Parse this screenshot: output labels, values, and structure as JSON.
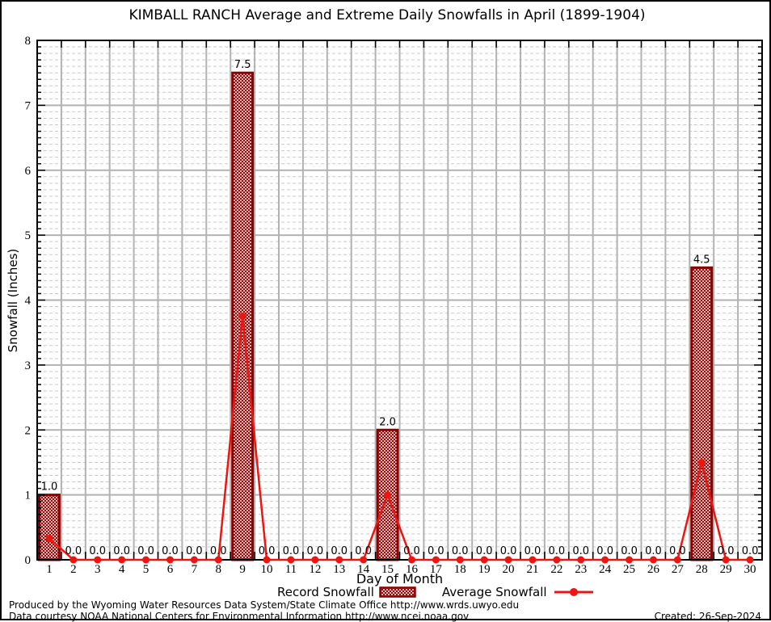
{
  "chart_data": {
    "type": "bar",
    "title": "KIMBALL RANCH Average and Extreme Daily Snowfalls in April (1899-1904)",
    "xlabel": "Day of Month",
    "ylabel": "Snowfall (Inches)",
    "ylim": [
      0,
      8
    ],
    "y_major_step": 1,
    "y_minor_step": 0.1,
    "grid": {
      "horizontal_major": "solid",
      "horizontal_minor": "dashed",
      "vertical": "solid-per-day"
    },
    "legend_position": "bottom-center",
    "categories": [
      1,
      2,
      3,
      4,
      5,
      6,
      7,
      8,
      9,
      10,
      11,
      12,
      13,
      14,
      15,
      16,
      17,
      18,
      19,
      20,
      21,
      22,
      23,
      24,
      25,
      26,
      27,
      28,
      29,
      30
    ],
    "series": [
      {
        "name": "Record Snowfall",
        "type": "bar",
        "values": [
          1.0,
          0,
          0,
          0,
          0,
          0,
          0,
          0,
          7.5,
          0,
          0,
          0,
          0,
          0,
          2.0,
          0,
          0,
          0,
          0,
          0,
          0,
          0,
          0,
          0,
          0,
          0,
          0,
          4.5,
          0,
          0
        ]
      },
      {
        "name": "Average Snowfall",
        "type": "line",
        "values": [
          0.33,
          0,
          0,
          0,
          0,
          0,
          0,
          0,
          3.75,
          0,
          0,
          0,
          0,
          0,
          1.0,
          0,
          0,
          0,
          0,
          0,
          0,
          0,
          0,
          0,
          0,
          0,
          0,
          1.5,
          0,
          0
        ]
      }
    ],
    "bar_value_labels": [
      "1.0",
      "0.0",
      "0.0",
      "0.0",
      "0.0",
      "0.0",
      "0.0",
      "0.0",
      "7.5",
      "0.0",
      "0.0",
      "0.0",
      "0.0",
      "0.0",
      "2.0",
      "0.0",
      "0.0",
      "0.0",
      "0.0",
      "0.0",
      "0.0",
      "0.0",
      "0.0",
      "0.0",
      "0.0",
      "0.0",
      "0.0",
      "4.5",
      "0.0",
      "0.0"
    ],
    "colors": {
      "bar_border": "#8b0000",
      "bar_hatch": "#8b0000",
      "line": "#ee1410",
      "grid_major": "#b2b2b2",
      "grid_minor": "#c9c9c9",
      "axis": "#000000",
      "text": "#000000",
      "background": "#ffffff"
    }
  },
  "footer": {
    "produced_by": "Produced by the Wyoming Water Resources Data System/State Climate Office http://www.wrds.uwyo.edu",
    "data_courtesy": "Data courtesy NOAA National Centers for Environmental Information http://www.ncei.noaa.gov",
    "created": "Created: 26-Sep-2024"
  }
}
